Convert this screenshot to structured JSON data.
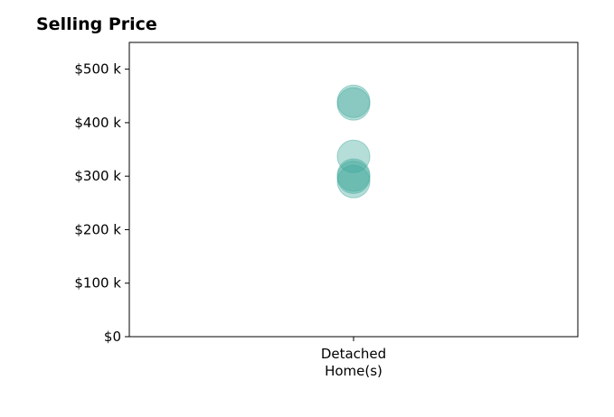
{
  "chart_data": {
    "type": "scatter",
    "title": "Selling Price",
    "xlabel": "",
    "ylabel": "",
    "categories": [
      "Detached\nHome(s)"
    ],
    "y_ticks": [
      "$0",
      "$100 k",
      "$200 k",
      "$300 k",
      "$400 k",
      "$500 k"
    ],
    "y_tick_values": [
      0,
      100000,
      200000,
      300000,
      400000,
      500000
    ],
    "ylim": [
      0,
      550000
    ],
    "grid": false,
    "series": [
      {
        "category": "Detached\nHome(s)",
        "values": [
          440000,
          435000,
          337000,
          302000,
          298000,
          290000
        ]
      }
    ],
    "colors": {
      "marker": "#40a99b",
      "axis": "#000000"
    }
  }
}
